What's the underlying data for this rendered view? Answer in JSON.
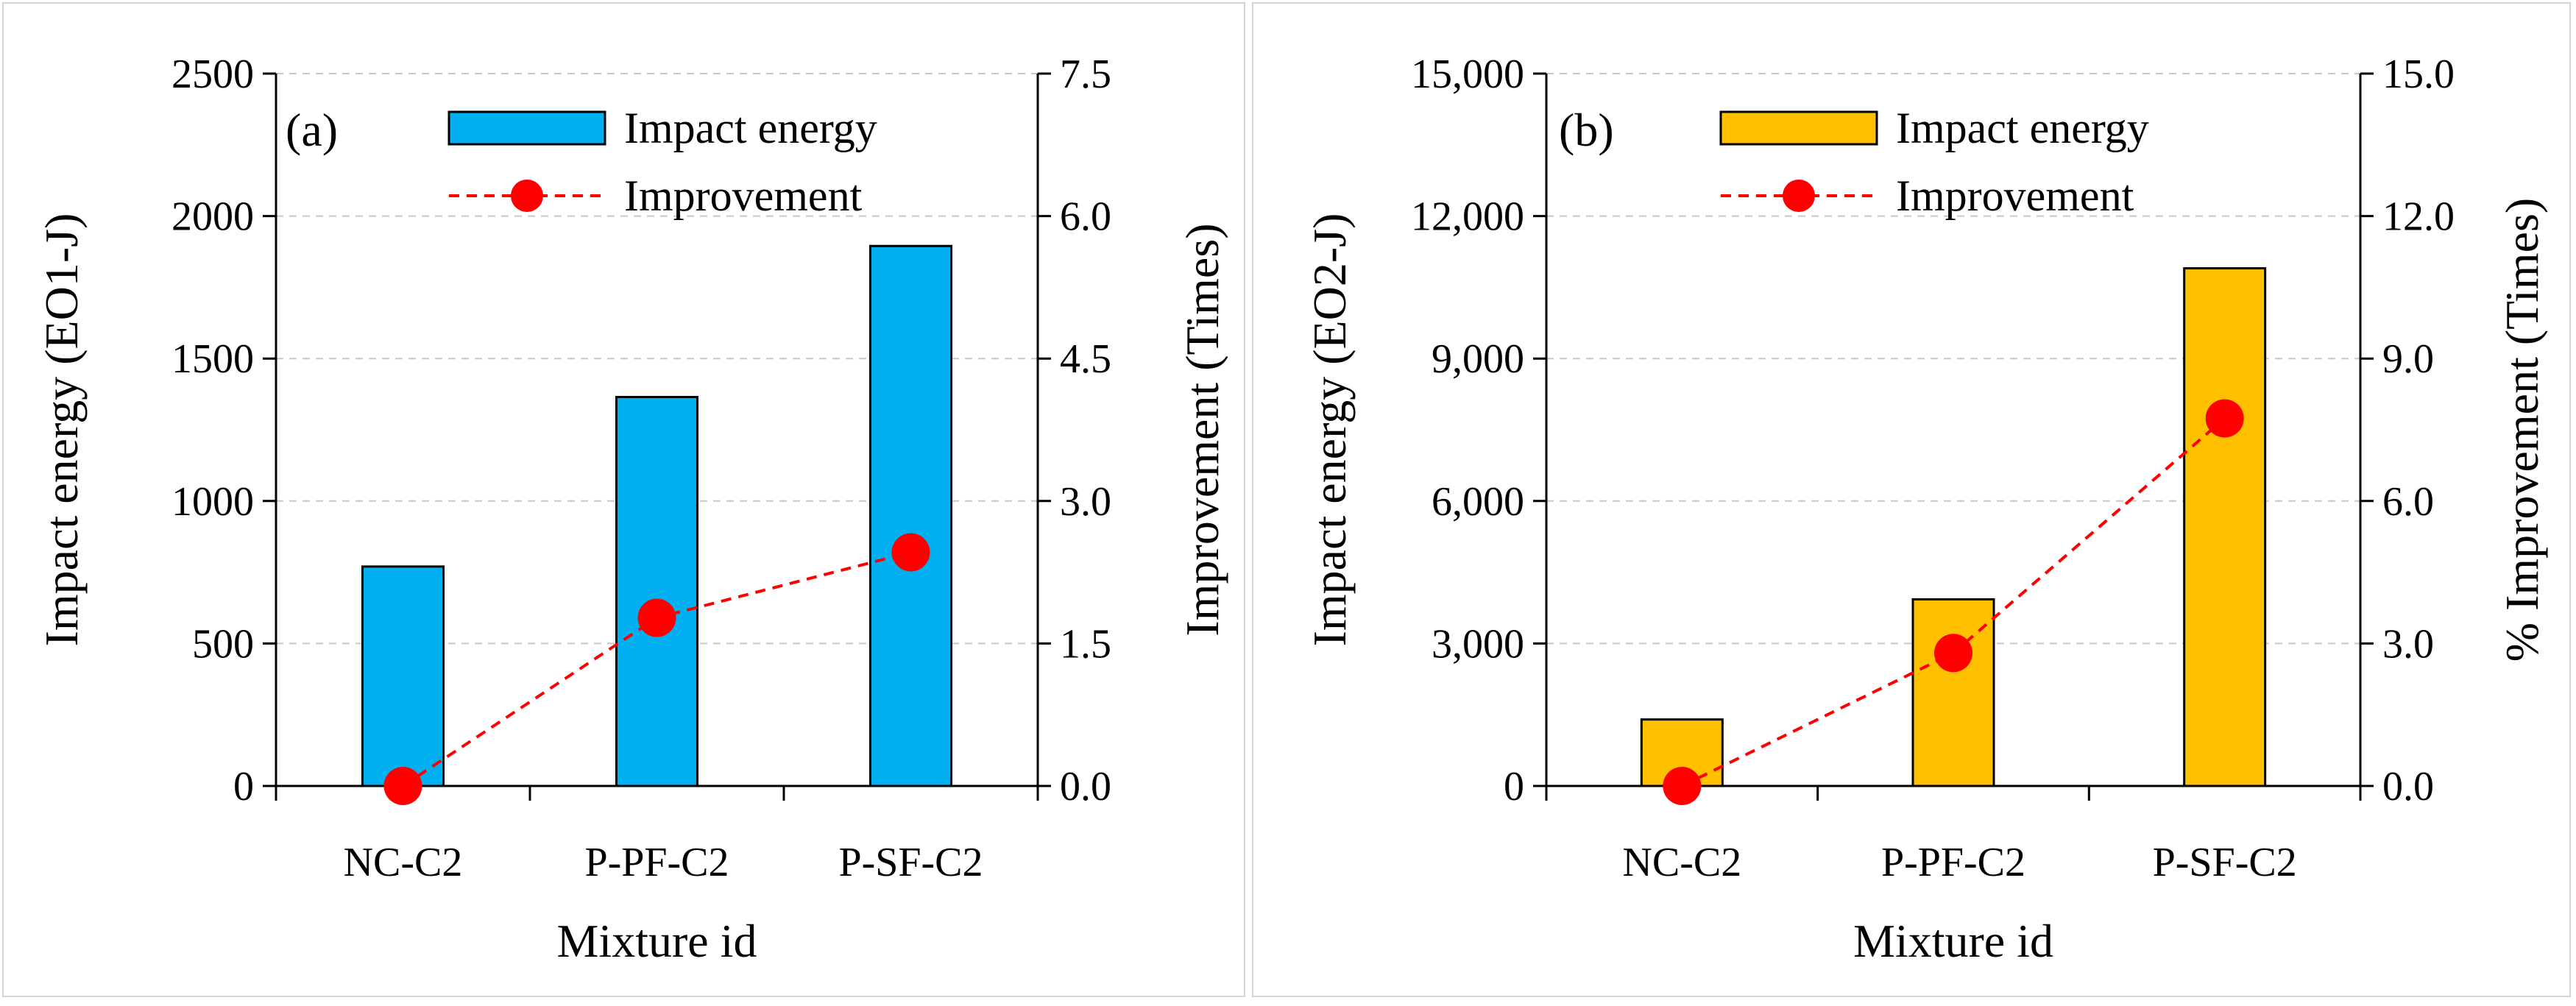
{
  "chart_data": [
    {
      "type": "bar",
      "panel_label": "(a)",
      "categories": [
        "NC-C2",
        "P-PF-C2",
        "P-SF-C2"
      ],
      "xlabel": "Mixture id",
      "ylabel": "Impact energy (EO1-J)",
      "y2label": "Improvement (Times)",
      "ylim": [
        0,
        2500
      ],
      "y2lim": [
        0,
        7.5
      ],
      "yticks": [
        "0",
        "500",
        "1000",
        "1500",
        "2000",
        "2500"
      ],
      "y2ticks": [
        "0.0",
        "1.5",
        "3.0",
        "4.5",
        "6.0",
        "7.5"
      ],
      "bar_color": "#00b0f0",
      "line_color": "#ff0000",
      "grid": true,
      "legend_position": "top",
      "series": [
        {
          "name": "Impact energy",
          "kind": "bar",
          "axis": "left",
          "values": [
            770,
            1365,
            1895
          ]
        },
        {
          "name": "Improvement",
          "kind": "line",
          "axis": "right",
          "values": [
            0.0,
            1.77,
            2.46
          ]
        }
      ]
    },
    {
      "type": "bar",
      "panel_label": "(b)",
      "categories": [
        "NC-C2",
        "P-PF-C2",
        "P-SF-C2"
      ],
      "xlabel": "Mixture id",
      "ylabel": "Impact energy (EO2-J)",
      "y2label": "% Improvement (Times)",
      "ylim": [
        0,
        15000
      ],
      "y2lim": [
        0,
        15
      ],
      "yticks": [
        "0",
        "3,000",
        "6,000",
        "9,000",
        "12,000",
        "15,000"
      ],
      "y2ticks": [
        "0.0",
        "3.0",
        "6.0",
        "9.0",
        "12.0",
        "15.0"
      ],
      "bar_color": "#ffc000",
      "line_color": "#ff0000",
      "grid": true,
      "legend_position": "top",
      "series": [
        {
          "name": "Impact energy",
          "kind": "bar",
          "axis": "left",
          "values": [
            1400,
            3930,
            10900
          ]
        },
        {
          "name": "Improvement",
          "kind": "line",
          "axis": "right",
          "values": [
            0.0,
            2.8,
            7.74
          ]
        }
      ]
    }
  ]
}
